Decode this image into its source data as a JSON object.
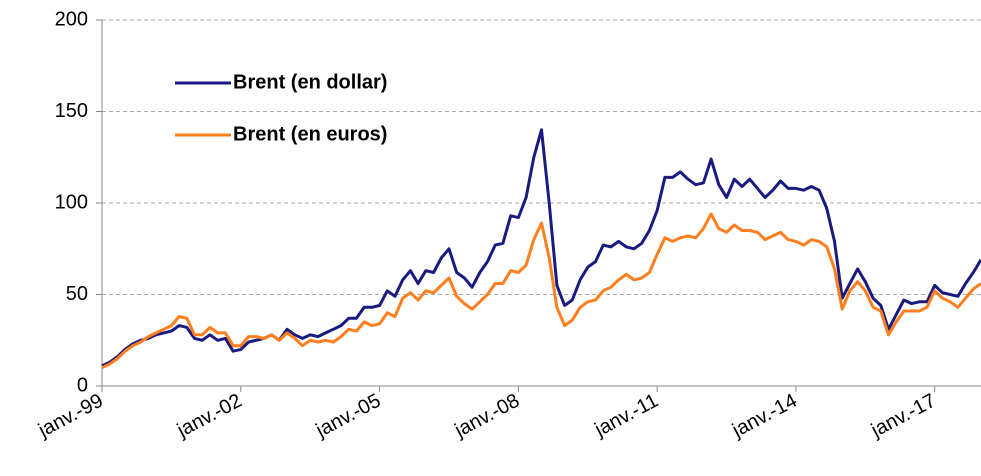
{
  "chart_data": {
    "type": "line",
    "x": [
      "1999-01",
      "1999-03",
      "1999-05",
      "1999-07",
      "1999-09",
      "1999-11",
      "2000-01",
      "2000-03",
      "2000-05",
      "2000-07",
      "2000-09",
      "2000-11",
      "2001-01",
      "2001-03",
      "2001-05",
      "2001-07",
      "2001-09",
      "2001-11",
      "2002-01",
      "2002-03",
      "2002-05",
      "2002-07",
      "2002-09",
      "2002-11",
      "2003-01",
      "2003-03",
      "2003-05",
      "2003-07",
      "2003-09",
      "2003-11",
      "2004-01",
      "2004-03",
      "2004-05",
      "2004-07",
      "2004-09",
      "2004-11",
      "2005-01",
      "2005-03",
      "2005-05",
      "2005-07",
      "2005-09",
      "2005-11",
      "2006-01",
      "2006-03",
      "2006-05",
      "2006-07",
      "2006-09",
      "2006-11",
      "2007-01",
      "2007-03",
      "2007-05",
      "2007-07",
      "2007-09",
      "2007-11",
      "2008-01",
      "2008-03",
      "2008-05",
      "2008-07",
      "2008-09",
      "2008-11",
      "2009-01",
      "2009-03",
      "2009-05",
      "2009-07",
      "2009-09",
      "2009-11",
      "2010-01",
      "2010-03",
      "2010-05",
      "2010-07",
      "2010-09",
      "2010-11",
      "2011-01",
      "2011-03",
      "2011-05",
      "2011-07",
      "2011-09",
      "2011-11",
      "2012-01",
      "2012-03",
      "2012-05",
      "2012-07",
      "2012-09",
      "2012-11",
      "2013-01",
      "2013-03",
      "2013-05",
      "2013-07",
      "2013-09",
      "2013-11",
      "2014-01",
      "2014-03",
      "2014-05",
      "2014-07",
      "2014-09",
      "2014-11",
      "2015-01",
      "2015-03",
      "2015-05",
      "2015-07",
      "2015-09",
      "2015-11",
      "2016-01",
      "2016-03",
      "2016-05",
      "2016-07",
      "2016-09",
      "2016-11",
      "2017-01",
      "2017-03",
      "2017-05",
      "2017-07",
      "2017-09",
      "2017-11",
      "2018-01"
    ],
    "series": [
      {
        "name": "Brent (en dollar)",
        "color": "#1a1a80",
        "values": [
          11,
          13,
          16,
          20,
          23,
          25,
          26,
          28,
          29,
          30,
          33,
          32,
          26,
          25,
          28,
          25,
          26,
          19,
          20,
          24,
          25,
          26,
          28,
          25,
          31,
          28,
          26,
          28,
          27,
          29,
          31,
          33,
          37,
          37,
          43,
          43,
          44,
          52,
          49,
          58,
          63,
          56,
          63,
          62,
          70,
          75,
          62,
          59,
          54,
          62,
          68,
          77,
          78,
          93,
          92,
          103,
          125,
          140,
          100,
          55,
          44,
          47,
          58,
          65,
          68,
          77,
          76,
          79,
          76,
          75,
          78,
          85,
          96,
          114,
          114,
          117,
          113,
          110,
          111,
          124,
          110,
          103,
          113,
          109,
          113,
          108,
          103,
          107,
          112,
          108,
          108,
          107,
          109,
          107,
          97,
          79,
          48,
          56,
          64,
          57,
          48,
          44,
          31,
          39,
          47,
          45,
          46,
          46,
          55,
          51,
          50,
          49,
          56,
          62,
          69
        ]
      },
      {
        "name": "Brent (en euros)",
        "color": "#ff7f1e",
        "values": [
          10,
          12,
          15,
          19,
          22,
          24,
          27,
          29,
          31,
          33,
          38,
          37,
          28,
          28,
          32,
          29,
          29,
          22,
          22,
          27,
          27,
          26,
          28,
          25,
          29,
          26,
          22,
          25,
          24,
          25,
          24,
          27,
          31,
          30,
          35,
          33,
          34,
          40,
          38,
          48,
          51,
          47,
          52,
          51,
          55,
          59,
          49,
          45,
          42,
          46,
          50,
          56,
          56,
          63,
          62,
          66,
          80,
          89,
          70,
          43,
          33,
          36,
          43,
          46,
          47,
          52,
          54,
          58,
          61,
          58,
          59,
          62,
          72,
          81,
          79,
          81,
          82,
          81,
          86,
          94,
          86,
          84,
          88,
          85,
          85,
          84,
          80,
          82,
          84,
          80,
          79,
          77,
          80,
          79,
          76,
          64,
          42,
          52,
          57,
          52,
          43,
          41,
          28,
          35,
          41,
          41,
          41,
          43,
          52,
          48,
          46,
          43,
          48,
          53,
          56
        ]
      }
    ],
    "xlim": [
      "1999-01",
      "2018-01"
    ],
    "xticks": [
      {
        "value": "1999-01",
        "label": "janv.-99"
      },
      {
        "value": "2002-01",
        "label": "janv.-02"
      },
      {
        "value": "2005-01",
        "label": "janv.-05"
      },
      {
        "value": "2008-01",
        "label": "janv.-08"
      },
      {
        "value": "2011-01",
        "label": "janv.-11"
      },
      {
        "value": "2014-01",
        "label": "janv.-14"
      },
      {
        "value": "2017-01",
        "label": "janv.-17"
      }
    ],
    "ylim": [
      0,
      200
    ],
    "yticks": [
      0,
      50,
      100,
      150,
      200
    ],
    "grid": true
  }
}
